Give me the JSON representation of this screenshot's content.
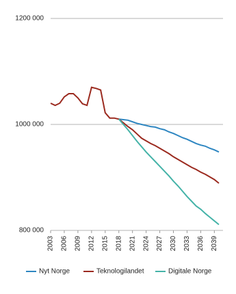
{
  "chart_data": {
    "type": "line",
    "x": [
      2003,
      2004,
      2005,
      2006,
      2007,
      2008,
      2009,
      2010,
      2011,
      2012,
      2013,
      2014,
      2015,
      2016,
      2017,
      2018,
      2019,
      2020,
      2021,
      2022,
      2023,
      2024,
      2025,
      2026,
      2027,
      2028,
      2029,
      2030,
      2031,
      2032,
      2033,
      2034,
      2035,
      2036,
      2037,
      2038,
      2039,
      2040
    ],
    "xlim": [
      2003,
      2040
    ],
    "xticks": [
      2003,
      2006,
      2009,
      2012,
      2015,
      2018,
      2021,
      2024,
      2027,
      2030,
      2033,
      2036,
      2039
    ],
    "ylim": [
      800000,
      1200000
    ],
    "yticks": [
      {
        "value": 800000,
        "label": "800 000"
      },
      {
        "value": 1000000,
        "label": "1000 000"
      },
      {
        "value": 1200000,
        "label": "1200 000"
      }
    ],
    "grid": true,
    "series": [
      {
        "name": "Nyt Norge",
        "color": "#2e86c1",
        "values": [
          null,
          null,
          null,
          null,
          null,
          null,
          null,
          null,
          null,
          null,
          null,
          null,
          null,
          null,
          null,
          1010000,
          1009000,
          1008000,
          1005000,
          1002000,
          1000000,
          998000,
          996000,
          995000,
          992000,
          990000,
          986000,
          983000,
          979000,
          975000,
          972000,
          968000,
          964000,
          961000,
          959000,
          955000,
          952000,
          948000
        ]
      },
      {
        "name": "Teknologilandet",
        "color": "#9b2a1f",
        "values": [
          1040000,
          1036000,
          1040000,
          1052000,
          1058000,
          1058000,
          1050000,
          1039000,
          1036000,
          1070000,
          1068000,
          1065000,
          1022000,
          1012000,
          1012000,
          1010000,
          1003000,
          996000,
          990000,
          982000,
          974000,
          969000,
          964000,
          960000,
          955000,
          950000,
          945000,
          939000,
          934000,
          929000,
          924000,
          919000,
          915000,
          910000,
          906000,
          901000,
          896000,
          889000
        ]
      },
      {
        "name": "Digitale Norge",
        "color": "#45b3a8",
        "values": [
          null,
          null,
          null,
          null,
          null,
          null,
          null,
          null,
          null,
          null,
          null,
          null,
          null,
          null,
          null,
          1010000,
          1000000,
          990000,
          979000,
          968000,
          958000,
          948000,
          939000,
          930000,
          921000,
          912000,
          903000,
          893000,
          884000,
          874000,
          864000,
          855000,
          846000,
          840000,
          832000,
          825000,
          818000,
          811000
        ]
      }
    ]
  }
}
